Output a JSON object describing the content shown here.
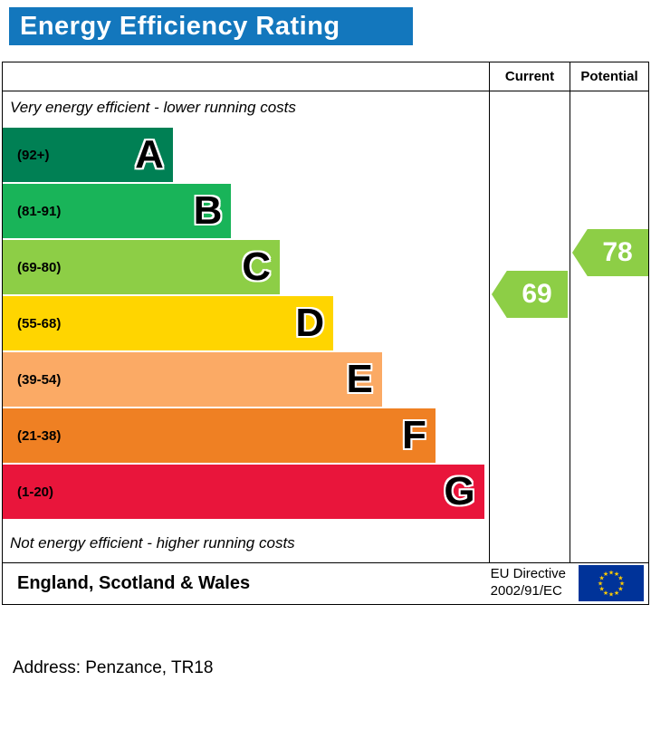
{
  "title": "Energy Efficiency Rating",
  "table": {
    "current_header": "Current",
    "potential_header": "Potential",
    "top_note": "Very energy efficient - lower running costs",
    "bottom_note": "Not energy efficient - higher running costs"
  },
  "bands": [
    {
      "letter": "A",
      "range": "(92+)",
      "color": "#008054",
      "width_pct": 35
    },
    {
      "letter": "B",
      "range": "(81-91)",
      "color": "#19b459",
      "width_pct": 47
    },
    {
      "letter": "C",
      "range": "(69-80)",
      "color": "#8dce46",
      "width_pct": 57
    },
    {
      "letter": "D",
      "range": "(55-68)",
      "color": "#ffd500",
      "width_pct": 68
    },
    {
      "letter": "E",
      "range": "(39-54)",
      "color": "#fbaa65",
      "width_pct": 78
    },
    {
      "letter": "F",
      "range": "(21-38)",
      "color": "#ef8023",
      "width_pct": 89
    },
    {
      "letter": "G",
      "range": "(1-20)",
      "color": "#e9153b",
      "width_pct": 99
    }
  ],
  "current": {
    "value": "69",
    "color": "#8dce46"
  },
  "potential": {
    "value": "78",
    "color": "#8dce46"
  },
  "footer": {
    "region": "England, Scotland & Wales",
    "directive_line1": "EU Directive",
    "directive_line2": "2002/91/EC"
  },
  "address_line": "Address: Penzance, TR18",
  "colors": {
    "header_blue": "#1377bd",
    "eu_flag_blue": "#003399",
    "eu_star_yellow": "#ffcc00"
  },
  "chart_data": {
    "type": "bar",
    "title": "Energy Efficiency Rating",
    "categories": [
      "A",
      "B",
      "C",
      "D",
      "E",
      "F",
      "G"
    ],
    "band_ranges": [
      "92+",
      "81-91",
      "69-80",
      "55-68",
      "39-54",
      "21-38",
      "1-20"
    ],
    "band_colors": [
      "#008054",
      "#19b459",
      "#8dce46",
      "#ffd500",
      "#fbaa65",
      "#ef8023",
      "#e9153b"
    ],
    "bar_lengths_pct": [
      35,
      47,
      57,
      68,
      78,
      89,
      99
    ],
    "current_rating": 69,
    "current_band": "C",
    "potential_rating": 78,
    "potential_band": "C",
    "top_annotation": "Very energy efficient - lower running costs",
    "bottom_annotation": "Not energy efficient - higher running costs",
    "region_label": "England, Scotland & Wales",
    "directive": "EU Directive 2002/91/EC"
  }
}
